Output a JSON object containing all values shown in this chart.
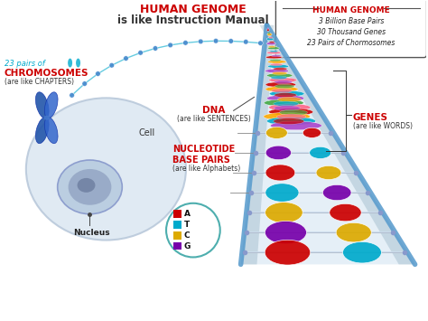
{
  "title_line1": "HUMAN GENOME",
  "title_line2": "is like Instruction Manual",
  "title_color": "#cc0000",
  "title_line2_color": "#333333",
  "bg_color": "#ffffff",
  "box_title": "HUMAN GENOME",
  "box_lines": [
    "3 Billion Base Pairs",
    "30 Thousand Genes",
    "23 Pairs of Chormosomes"
  ],
  "label_chromosomes_top": "23 pairs of",
  "label_chromosomes_main": "CHROMOSOMES",
  "label_chromosomes_sub": "(are like CHAPTERS)",
  "label_dna_main": "DNA",
  "label_dna_sub": "(are like SENTENCES)",
  "label_genes_main": "GENES",
  "label_genes_sub": "(are like WORDS)",
  "label_nucleotide_main": "NUCLEOTIDE\nBASE PAIRS",
  "label_nucleotide_sub": "(are like Alphabets)",
  "label_cell": "Cell",
  "label_nucleus": "Nucleus",
  "bases": [
    {
      "letter": "A",
      "color": "#cc0000"
    },
    {
      "letter": "T",
      "color": "#00aacc"
    },
    {
      "letter": "C",
      "color": "#ddaa00"
    },
    {
      "letter": "G",
      "color": "#7700aa"
    }
  ],
  "bases_circle_color": "#44aaaa",
  "cyan_color": "#00aacc",
  "red_color": "#cc0000",
  "dark_blue": "#2255aa",
  "mid_blue": "#4488cc",
  "light_blue": "#aaccee",
  "steel_blue": "#5b8db8",
  "funnel_blue": "#5599cc",
  "helix_colors": [
    "#cc0000",
    "#ffaa00",
    "#00aacc",
    "#aa44cc",
    "#44aa44",
    "#ff6688"
  ],
  "nucleotide_colors": [
    "#cc0000",
    "#00aacc",
    "#ddaa00",
    "#7700aa"
  ],
  "rung_base_colors_left": [
    "#ddaa00",
    "#7700aa",
    "#cc0000",
    "#00aacc",
    "#ddaa00",
    "#7700aa",
    "#cc0000"
  ],
  "rung_base_colors_right": [
    "#cc0000",
    "#00aacc",
    "#ddaa00",
    "#7700aa",
    "#cc0000",
    "#ddaa00",
    "#00aacc"
  ]
}
